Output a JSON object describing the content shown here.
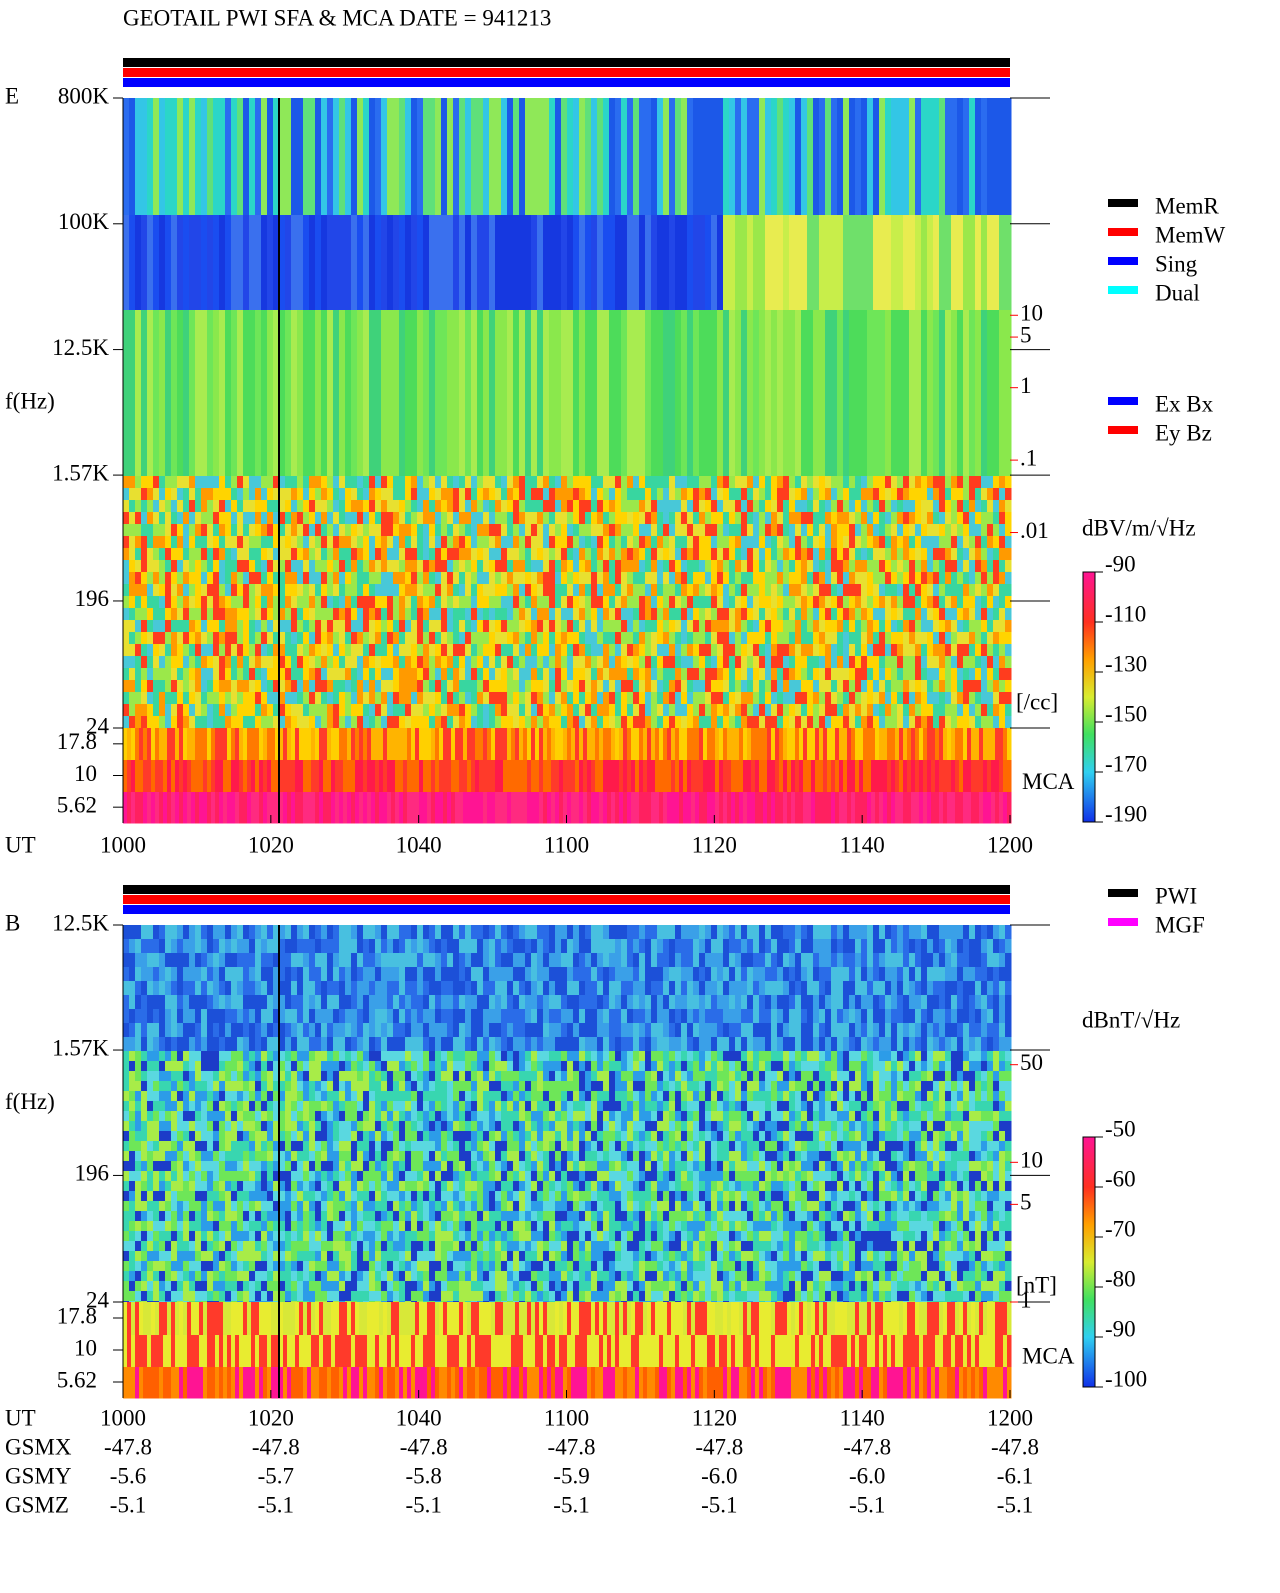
{
  "chart_data": [
    {
      "type": "spectrogram",
      "title": "GEOTAIL  PWI SFA & MCA   DATE = 941213",
      "panel": "E",
      "ylabel": "f(Hz)",
      "yscale": "log",
      "ylim": [
        24,
        800000
      ],
      "yticks": [
        {
          "value": 800000,
          "label": "800K"
        },
        {
          "value": 100000,
          "label": "100K"
        },
        {
          "value": 12500,
          "label": "12.5K"
        },
        {
          "value": 1570,
          "label": "1.57K"
        },
        196,
        24
      ],
      "mca_label": "MCA",
      "mca_ticks": [
        17.8,
        10,
        5.62
      ],
      "xlabel": "UT",
      "xticks": [
        "1000",
        "1020",
        "1040",
        "1100",
        "1120",
        "1140",
        "1200"
      ],
      "y2scale": "log",
      "y2lim": [
        2e-05,
        10000
      ],
      "y2color": "#ff0000",
      "y2ticks": [
        10,
        5,
        1,
        {
          "value": 0.1,
          "label": ".1"
        },
        {
          "value": 0.01,
          "label": ".01"
        }
      ],
      "y2label": "[/cc]",
      "colorbar": {
        "label": "dBV/m/√Hz",
        "clim": [
          -190,
          -90
        ],
        "ticks": [
          -90,
          -110,
          -130,
          -150,
          -170,
          -190
        ]
      },
      "legend": [
        {
          "name": "MemR",
          "color": "#000000"
        },
        {
          "name": "MemW",
          "color": "#ff0000"
        },
        {
          "name": "Sing",
          "color": "#0000ff"
        },
        {
          "name": "Dual",
          "color": "#00ffff"
        }
      ],
      "legend2": [
        {
          "name": "Ex Bx",
          "color": "#0000ff"
        },
        {
          "name": "Ey Bz",
          "color": "#ff0000"
        }
      ]
    },
    {
      "type": "spectrogram",
      "panel": "B",
      "ylabel": "f(Hz)",
      "yscale": "log",
      "ylim": [
        24,
        12500
      ],
      "yticks": [
        {
          "value": 12500,
          "label": "12.5K"
        },
        {
          "value": 1570,
          "label": "1.57K"
        },
        196,
        24
      ],
      "mca_label": "MCA",
      "mca_ticks": [
        17.8,
        10,
        5.62
      ],
      "xlabel": "UT",
      "xticks": [
        "1000",
        "1020",
        "1040",
        "1100",
        "1120",
        "1140",
        "1200"
      ],
      "y2scale": "log",
      "y2lim": [
        1,
        500
      ],
      "y2color": "#ff0000",
      "y2ticks": [
        50,
        10,
        5,
        1
      ],
      "y2label": "[nT]",
      "colorbar": {
        "label": "dBnT/√Hz",
        "clim": [
          -100,
          -50
        ],
        "ticks": [
          -50,
          -60,
          -70,
          -80,
          -90,
          -100
        ]
      },
      "legend": [
        {
          "name": "PWI",
          "color": "#000000"
        },
        {
          "name": "MGF",
          "color": "#ff00ff"
        }
      ]
    }
  ],
  "ephemeris": [
    {
      "name": "GSMX",
      "values": [
        -47.8,
        -47.8,
        -47.8,
        -47.8,
        -47.8,
        -47.8,
        -47.8
      ]
    },
    {
      "name": "GSMY",
      "values": [
        -5.6,
        -5.7,
        -5.8,
        -5.9,
        -6,
        -6,
        -6.1
      ],
      "value_labels": [
        "-5.6",
        "-5.7",
        "-5.8",
        "-5.9",
        "-6.0",
        "-6.0",
        "-6.1"
      ]
    },
    {
      "name": "GSMZ",
      "values": [
        -5.1,
        -5.1,
        -5.1,
        -5.1,
        -5.1,
        -5.1,
        -5.1
      ]
    }
  ]
}
